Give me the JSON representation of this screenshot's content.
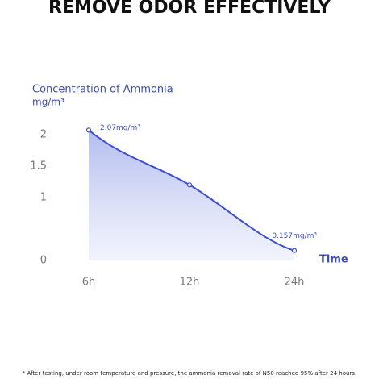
{
  "chart_data": {
    "type": "line",
    "title": "REMOVE ODOR EFFECTIVELY",
    "y_label": "Concentration of Ammonia",
    "y_unit": "mg/m³",
    "x_label": "Time",
    "categories": [
      "6h",
      "12h",
      "24h"
    ],
    "values": [
      2.07,
      1.2,
      0.157
    ],
    "value_labels": [
      "2.07mg/m³",
      null,
      "0.157mg/m³"
    ],
    "color": "#3b4fc9",
    "ylim": [
      0,
      2.1
    ],
    "yticks": [
      0,
      1,
      1.5,
      2
    ],
    "footnote": "* After testing, under room temperature and pressure, the ammonia removal rate of N50 reached 95% after 24 hours."
  }
}
